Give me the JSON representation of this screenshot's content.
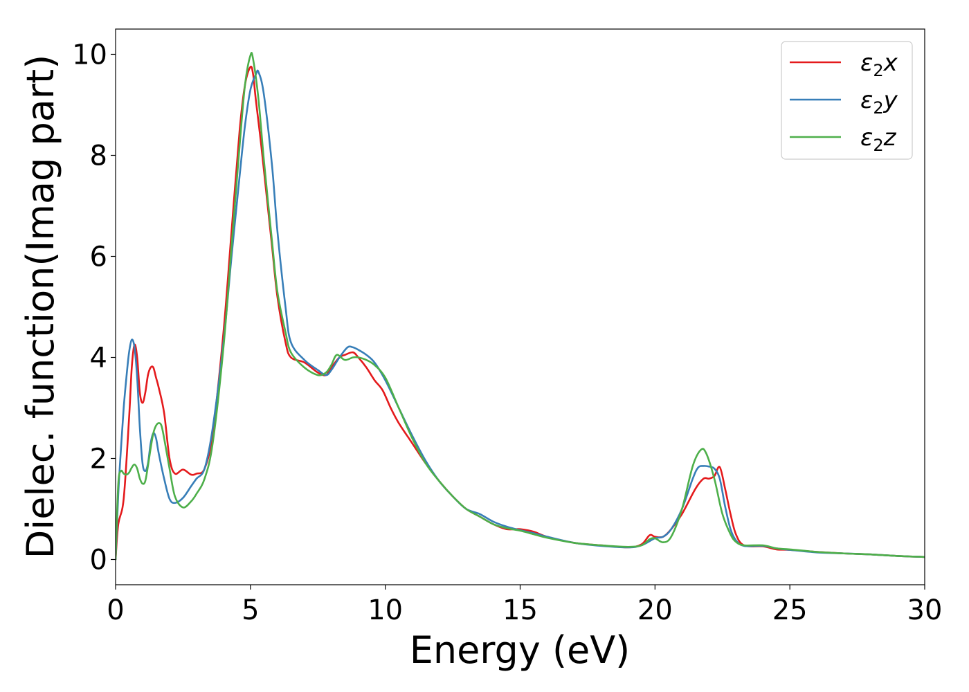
{
  "chart_data": {
    "type": "line",
    "xlabel": "Energy (eV)",
    "ylabel": "Dielec. function(Imag part)",
    "xlim": [
      0,
      30
    ],
    "ylim": [
      -0.5,
      10.5
    ],
    "x_ticks": [
      0,
      5,
      10,
      15,
      20,
      25,
      30
    ],
    "y_ticks": [
      0,
      2,
      4,
      6,
      8,
      10
    ],
    "grid": false,
    "legend_position": "top-right",
    "series": [
      {
        "name": "ε2x",
        "legend": {
          "symbol": "ε",
          "sub": "2",
          "axis": "x"
        },
        "color": "#e41a1c",
        "x": [
          0,
          0.1,
          0.3,
          0.5,
          0.6,
          0.7,
          0.8,
          0.9,
          1.0,
          1.1,
          1.2,
          1.3,
          1.4,
          1.5,
          1.6,
          1.8,
          2.0,
          2.2,
          2.5,
          2.8,
          3.0,
          3.3,
          3.6,
          4.0,
          4.3,
          4.6,
          4.8,
          5.0,
          5.1,
          5.2,
          5.4,
          5.6,
          5.8,
          6.0,
          6.3,
          6.5,
          7.0,
          7.5,
          7.8,
          8.0,
          8.3,
          8.5,
          8.8,
          9.0,
          9.3,
          9.6,
          9.9,
          10.2,
          10.5,
          11.0,
          11.5,
          12.0,
          12.5,
          13.0,
          13.5,
          14.0,
          14.5,
          15.0,
          15.5,
          16.0,
          17.0,
          18.0,
          19.0,
          19.5,
          19.8,
          20.0,
          20.3,
          20.6,
          21.0,
          21.5,
          21.8,
          22.0,
          22.2,
          22.4,
          22.6,
          22.8,
          23.0,
          23.3,
          24.0,
          24.5,
          25.0,
          26.0,
          27.0,
          28.0,
          29.0,
          30.0
        ],
        "values": [
          0,
          0.7,
          1.2,
          2.8,
          3.8,
          4.25,
          4.0,
          3.3,
          3.1,
          3.3,
          3.65,
          3.8,
          3.8,
          3.6,
          3.4,
          2.9,
          2.0,
          1.7,
          1.78,
          1.68,
          1.7,
          1.8,
          2.5,
          4.5,
          6.5,
          8.5,
          9.4,
          9.75,
          9.6,
          9.1,
          8.2,
          7.2,
          6.2,
          5.2,
          4.3,
          4.0,
          3.9,
          3.7,
          3.65,
          3.8,
          4.0,
          4.05,
          4.1,
          4.0,
          3.8,
          3.55,
          3.35,
          3.0,
          2.7,
          2.3,
          1.9,
          1.55,
          1.25,
          1.0,
          0.85,
          0.7,
          0.6,
          0.6,
          0.55,
          0.45,
          0.33,
          0.28,
          0.24,
          0.3,
          0.48,
          0.45,
          0.45,
          0.6,
          0.9,
          1.4,
          1.6,
          1.6,
          1.65,
          1.83,
          1.4,
          0.9,
          0.5,
          0.28,
          0.26,
          0.2,
          0.19,
          0.15,
          0.12,
          0.1,
          0.07,
          0.05
        ]
      },
      {
        "name": "ε2y",
        "legend": {
          "symbol": "ε",
          "sub": "2",
          "axis": "y"
        },
        "color": "#377eb8",
        "x": [
          0,
          0.1,
          0.2,
          0.3,
          0.4,
          0.5,
          0.6,
          0.7,
          0.8,
          0.9,
          1.0,
          1.1,
          1.2,
          1.3,
          1.4,
          1.5,
          1.6,
          1.8,
          2.0,
          2.2,
          2.5,
          2.8,
          3.0,
          3.3,
          3.6,
          4.0,
          4.3,
          4.6,
          4.8,
          5.0,
          5.2,
          5.3,
          5.5,
          5.8,
          6.0,
          6.3,
          6.5,
          7.0,
          7.5,
          7.8,
          8.0,
          8.3,
          8.6,
          8.8,
          9.0,
          9.3,
          9.6,
          10.0,
          10.5,
          11.0,
          11.5,
          12.0,
          12.5,
          13.0,
          13.5,
          14.0,
          14.5,
          15.0,
          15.5,
          16.0,
          17.0,
          18.0,
          19.0,
          19.5,
          20.0,
          20.3,
          20.6,
          21.0,
          21.4,
          21.6,
          21.8,
          22.0,
          22.2,
          22.4,
          22.6,
          22.8,
          23.0,
          23.3,
          24.0,
          24.5,
          25.0,
          26.0,
          27.0,
          28.0,
          29.0,
          30.0
        ],
        "values": [
          0,
          1.3,
          2.2,
          3.0,
          3.6,
          4.1,
          4.35,
          4.2,
          3.6,
          2.6,
          1.9,
          1.75,
          1.9,
          2.3,
          2.5,
          2.4,
          2.1,
          1.6,
          1.2,
          1.12,
          1.22,
          1.45,
          1.6,
          1.8,
          2.6,
          4.3,
          6.0,
          7.6,
          8.6,
          9.3,
          9.6,
          9.65,
          9.2,
          7.8,
          6.5,
          5.0,
          4.3,
          3.95,
          3.75,
          3.65,
          3.75,
          4.0,
          4.2,
          4.2,
          4.15,
          4.05,
          3.9,
          3.55,
          3.0,
          2.45,
          1.95,
          1.55,
          1.25,
          1.0,
          0.9,
          0.75,
          0.65,
          0.58,
          0.52,
          0.45,
          0.33,
          0.27,
          0.24,
          0.28,
          0.42,
          0.45,
          0.6,
          1.0,
          1.6,
          1.82,
          1.85,
          1.84,
          1.8,
          1.6,
          1.05,
          0.6,
          0.38,
          0.27,
          0.27,
          0.22,
          0.19,
          0.14,
          0.12,
          0.1,
          0.07,
          0.05
        ]
      },
      {
        "name": "ε2z",
        "legend": {
          "symbol": "ε",
          "sub": "2",
          "axis": "z"
        },
        "color": "#4daf4a",
        "x": [
          0,
          0.1,
          0.2,
          0.3,
          0.4,
          0.5,
          0.6,
          0.7,
          0.8,
          0.9,
          1.0,
          1.1,
          1.2,
          1.3,
          1.4,
          1.5,
          1.6,
          1.7,
          1.8,
          2.0,
          2.2,
          2.5,
          2.8,
          3.0,
          3.3,
          3.6,
          4.0,
          4.3,
          4.6,
          4.8,
          5.0,
          5.1,
          5.3,
          5.5,
          5.8,
          6.0,
          6.3,
          6.5,
          7.0,
          7.5,
          7.8,
          8.0,
          8.2,
          8.5,
          8.8,
          9.0,
          9.3,
          9.6,
          10.0,
          10.5,
          11.0,
          11.5,
          12.0,
          12.5,
          13.0,
          13.5,
          14.0,
          14.5,
          15.0,
          15.5,
          16.0,
          17.0,
          18.0,
          19.0,
          19.5,
          19.8,
          20.0,
          20.3,
          20.6,
          21.0,
          21.4,
          21.7,
          21.9,
          22.2,
          22.5,
          22.8,
          23.0,
          23.3,
          24.0,
          24.5,
          25.0,
          26.0,
          27.0,
          28.0,
          29.0,
          30.0
        ],
        "values": [
          0,
          1.5,
          1.75,
          1.7,
          1.68,
          1.72,
          1.82,
          1.88,
          1.8,
          1.6,
          1.5,
          1.55,
          1.85,
          2.2,
          2.5,
          2.65,
          2.7,
          2.65,
          2.4,
          1.8,
          1.25,
          1.03,
          1.15,
          1.3,
          1.6,
          2.3,
          4.2,
          6.2,
          8.2,
          9.4,
          9.98,
          9.9,
          9.1,
          7.9,
          6.3,
          5.3,
          4.5,
          4.1,
          3.8,
          3.65,
          3.7,
          3.85,
          4.05,
          3.95,
          4.0,
          4.0,
          3.95,
          3.85,
          3.6,
          3.0,
          2.4,
          1.9,
          1.55,
          1.25,
          1.0,
          0.85,
          0.7,
          0.62,
          0.57,
          0.5,
          0.43,
          0.33,
          0.28,
          0.25,
          0.28,
          0.4,
          0.42,
          0.34,
          0.45,
          1.0,
          1.85,
          2.17,
          2.1,
          1.6,
          0.9,
          0.5,
          0.35,
          0.28,
          0.28,
          0.22,
          0.2,
          0.15,
          0.12,
          0.1,
          0.07,
          0.05
        ]
      }
    ]
  }
}
